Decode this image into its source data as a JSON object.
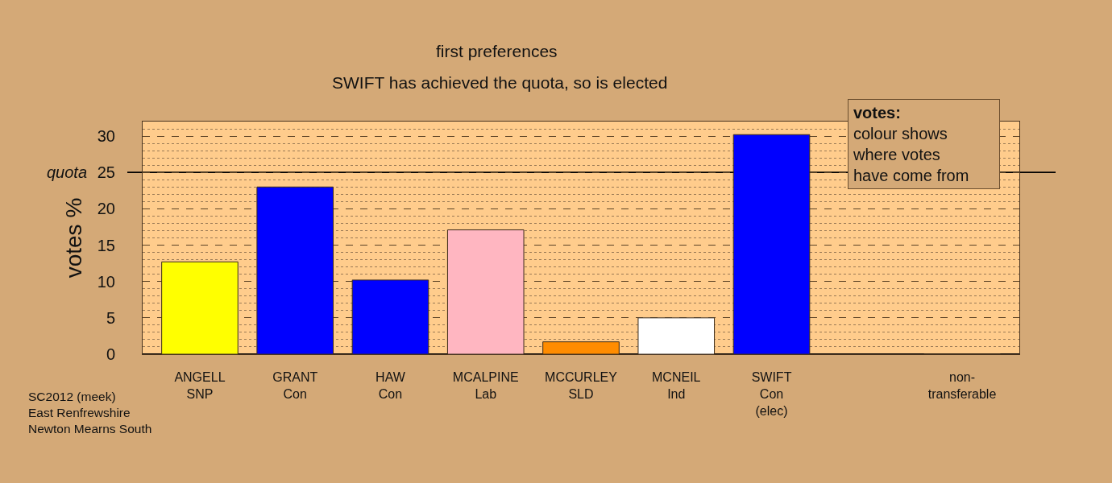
{
  "chart_data": {
    "type": "bar",
    "title": "first preferences",
    "subtitle": "SWIFT has achieved the quota, so is elected",
    "ylabel": "votes %",
    "categories": [
      "ANGELL\nSNP",
      "GRANT\nCon",
      "HAW\nCon",
      "MCALPINE\nLab",
      "MCCURLEY\nSLD",
      "MCNEIL\nInd",
      "SWIFT\nCon\n(elec)",
      null,
      "non-\ntransferable"
    ],
    "values": [
      12.7,
      23.0,
      10.2,
      17.1,
      1.7,
      5.0,
      30.2,
      null,
      0
    ],
    "colors": [
      "#ffff00",
      "#0000ff",
      "#0000ff",
      "#ffb6c1",
      "#ff8c00",
      "#ffffff",
      "#0000ff",
      null,
      null
    ],
    "ylim": [
      0,
      32
    ],
    "yticks": [
      0,
      {
        "value": 1,
        "label": null
      },
      {
        "value": 2,
        "label": null
      },
      {
        "value": 3,
        "label": null
      },
      {
        "value": 4,
        "label": null
      },
      5,
      {
        "value": 6,
        "label": null
      },
      {
        "value": 7,
        "label": null
      },
      {
        "value": 8,
        "label": null
      },
      {
        "value": 9,
        "label": null
      },
      10,
      {
        "value": 11,
        "label": null
      },
      {
        "value": 12,
        "label": null
      },
      {
        "value": 13,
        "label": null
      },
      {
        "value": 14,
        "label": null
      },
      15,
      {
        "value": 16,
        "label": null
      },
      {
        "value": 17,
        "label": null
      },
      {
        "value": 18,
        "label": null
      },
      {
        "value": 19,
        "label": null
      },
      20,
      {
        "value": 21,
        "label": null
      },
      {
        "value": 22,
        "label": null
      },
      {
        "value": 23,
        "label": null
      },
      {
        "value": 24,
        "label": null
      },
      25,
      {
        "value": 26,
        "label": null
      },
      {
        "value": 27,
        "label": null
      },
      {
        "value": 28,
        "label": null
      },
      {
        "value": 29,
        "label": null
      },
      30,
      {
        "value": 31,
        "label": null
      }
    ],
    "grid": "y",
    "ref_lines": [
      {
        "axis": "y",
        "value": 25,
        "label": "quota",
        "color": "#000000"
      }
    ],
    "annotations": [
      "votes:\ncolour shows\nwhere votes\nhave come from",
      "SC2012 (meek)\nEast Renfrewshire\nNewton Mearns South"
    ]
  }
}
